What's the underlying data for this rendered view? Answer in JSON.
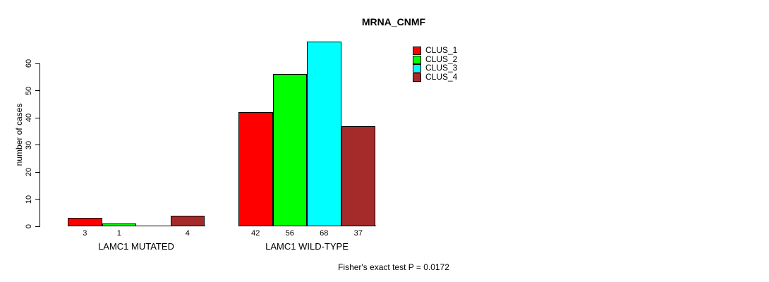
{
  "title": "MRNA_CNMF",
  "footer": "Fisher's exact test P = 0.0172",
  "y_axis": {
    "label": "number of cases",
    "ticks": [
      0,
      10,
      20,
      30,
      40,
      50,
      60
    ]
  },
  "x_axis": {
    "group_labels": [
      "LAMC1 MUTATED",
      "LAMC1 WILD-TYPE"
    ]
  },
  "legend": {
    "position": "top-right",
    "items": [
      {
        "label": "CLUS_1",
        "color": "#ff0000"
      },
      {
        "label": "CLUS_2",
        "color": "#00ff00"
      },
      {
        "label": "CLUS_3",
        "color": "#00ffff"
      },
      {
        "label": "CLUS_4",
        "color": "#a52a2a"
      }
    ]
  },
  "chart_data": {
    "type": "bar",
    "title": "MRNA_CNMF",
    "xlabel": "",
    "ylabel": "number of cases",
    "ylim": [
      0,
      68
    ],
    "y_ticks": [
      0,
      10,
      20,
      30,
      40,
      50,
      60
    ],
    "grid": false,
    "legend_position": "top-right",
    "categories": [
      "LAMC1 MUTATED",
      "LAMC1 WILD-TYPE"
    ],
    "series": [
      {
        "name": "CLUS_1",
        "color": "#ff0000",
        "values": [
          3,
          42
        ],
        "value_labels": [
          "3",
          "42"
        ]
      },
      {
        "name": "CLUS_2",
        "color": "#00ff00",
        "values": [
          1,
          56
        ],
        "value_labels": [
          "1",
          "56"
        ]
      },
      {
        "name": "CLUS_3",
        "color": "#00ffff",
        "values": [
          0,
          68
        ],
        "value_labels": [
          "",
          "68"
        ]
      },
      {
        "name": "CLUS_4",
        "color": "#a52a2a",
        "values": [
          4,
          37
        ],
        "value_labels": [
          "4",
          "37"
        ]
      }
    ],
    "annotation": "Fisher's exact test P = 0.0172"
  }
}
